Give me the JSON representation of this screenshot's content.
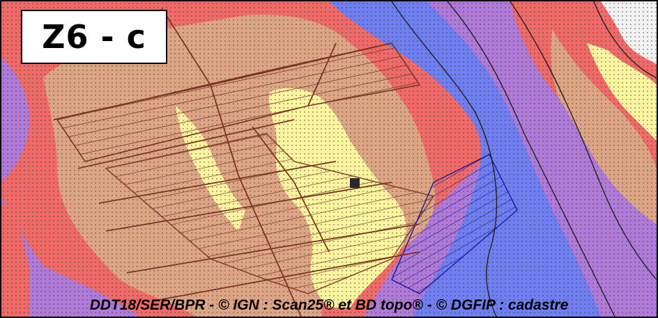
{
  "map": {
    "zone_label": "Z6 - c",
    "credit": "DDT18/SER/BPR - © IGN : Scan25® et BD topo® - © DGFIP : cadastre",
    "colors": {
      "zone_red": "#f06a68",
      "zone_violet": "#b07ad8",
      "zone_blue": "#6f7ef0",
      "zone_tan": "#dea584",
      "zone_yellow": "#fbf5a0",
      "zone_white": "#f2f2f2",
      "parcel_lines": "#7a3524",
      "river_lines": "#1a1aa0",
      "contours": "#222222"
    }
  }
}
